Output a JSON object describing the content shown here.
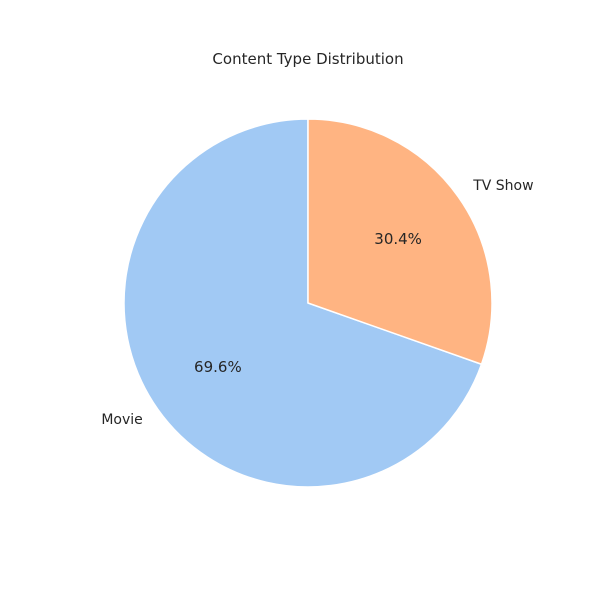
{
  "chart_data": {
    "type": "pie",
    "title": "Content Type Distribution",
    "slices": [
      {
        "label": "Movie",
        "value": 69.6,
        "pct_label": "69.6%",
        "color": "#a1c9f4"
      },
      {
        "label": "TV Show",
        "value": 30.4,
        "pct_label": "30.4%",
        "color": "#ffb482"
      }
    ],
    "start_angle": 90,
    "direction": "counterclockwise"
  }
}
